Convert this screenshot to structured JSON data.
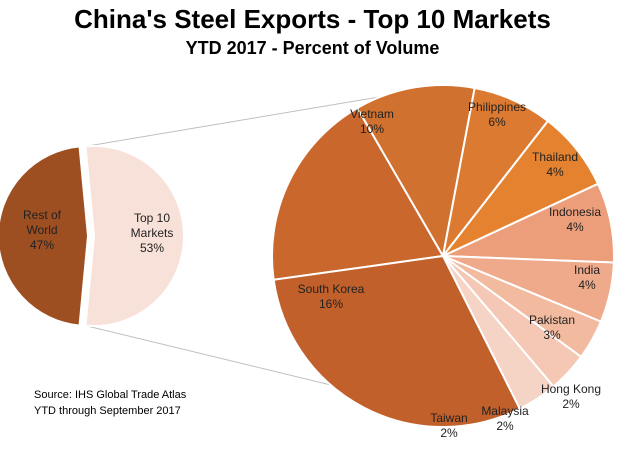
{
  "chart_data": [
    {
      "type": "pie",
      "title": "China's Steel Exports - Top 10 Markets",
      "subtitle": "YTD 2017 - Percent of Volume",
      "categories": [
        "Top 10 Markets",
        "Rest of World"
      ],
      "values": [
        53,
        47
      ],
      "labels": [
        "53%",
        "47%"
      ],
      "colors": [
        "#f8e1d9",
        "#9e4f22"
      ]
    },
    {
      "type": "pie",
      "categories": [
        "Vietnam",
        "Philippines",
        "Thailand",
        "Indonesia",
        "India",
        "Pakistan",
        "Hong Kong",
        "Malaysia",
        "Taiwan",
        "South Korea"
      ],
      "values": [
        10,
        6,
        4,
        4,
        4,
        3,
        2,
        2,
        2,
        16
      ],
      "labels": [
        "10%",
        "6%",
        "4%",
        "4%",
        "4%",
        "3%",
        "2%",
        "2%",
        "2%",
        "16%"
      ],
      "colors": [
        "#c9672d",
        "#d1712f",
        "#db7a30",
        "#e4822f",
        "#ec9e7b",
        "#eeaa8a",
        "#f2ba9f",
        "#f4c8b4",
        "#f6d4c5",
        "#c1602b"
      ]
    }
  ],
  "text": {
    "title": "China's Steel Exports - Top 10 Markets",
    "subtitle": "YTD 2017 - Percent of Volume",
    "source_line1": "Source: IHS Global Trade Atlas",
    "source_line2": "YTD through September 2017"
  },
  "slice_labels": {
    "top10_name": [
      "Top 10",
      "Markets"
    ],
    "top10_value": "53%",
    "row_name": [
      "Rest of",
      "World"
    ],
    "row_value": "47%",
    "vietnam": "Vietnam",
    "vietnam_value": "10%",
    "philippines": "Philippines",
    "philippines_value": "6%",
    "thailand": "Thailand",
    "thailand_value": "4%",
    "indonesia": "Indonesia",
    "indonesia_value": "4%",
    "india": "India",
    "india_value": "4%",
    "pakistan": "Pakistan",
    "pakistan_value": "3%",
    "hongkong": "Hong Kong",
    "hongkong_value": "2%",
    "malaysia": "Malaysia",
    "malaysia_value": "2%",
    "taiwan": "Taiwan",
    "taiwan_value": "2%",
    "southkorea": "South Korea",
    "southkorea_value": "16%"
  },
  "connector_color": "#bfbfbf"
}
